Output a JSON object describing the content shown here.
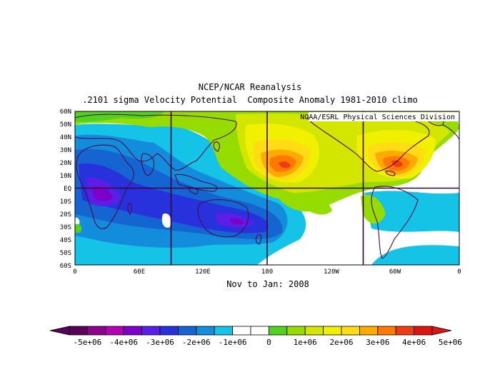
{
  "titles": {
    "line1": "NCEP/NCAR Reanalysis",
    "line2": ".2101 sigma Velocity Potential  Composite Anomaly 1981-2010 climo",
    "period": "Nov to Jan: 2008"
  },
  "credit": "NOAA/ESRL Physical Sciences Division",
  "lat_labels": [
    "60N",
    "50N",
    "40N",
    "30N",
    "20N",
    "10N",
    "EQ",
    "10S",
    "20S",
    "30S",
    "40S",
    "50S",
    "60S"
  ],
  "lon_labels": [
    "0",
    "60E",
    "120E",
    "180",
    "120W",
    "60W",
    "0"
  ],
  "colorbar": {
    "labels": [
      "-5e+06",
      "-4e+06",
      "-3e+06",
      "-2e+06",
      "-1e+06",
      "0",
      "1e+06",
      "2e+06",
      "3e+06",
      "4e+06",
      "5e+06"
    ],
    "colors": [
      "#5a005a",
      "#8c008c",
      "#b400b4",
      "#7d00c8",
      "#5a1ee6",
      "#2832dc",
      "#1464d2",
      "#148cdc",
      "#14c3e6",
      "#ffffff",
      "#ffffff",
      "#50d21e",
      "#96dc00",
      "#d2e600",
      "#f0f000",
      "#ffdc14",
      "#ffaa00",
      "#ff7800",
      "#f03c14",
      "#dc1414"
    ]
  },
  "colors": {
    "boundary": "#4b0a4b",
    "grid": "#3c003c"
  }
}
